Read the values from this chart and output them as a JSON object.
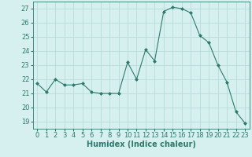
{
  "x": [
    0,
    1,
    2,
    3,
    4,
    5,
    6,
    7,
    8,
    9,
    10,
    11,
    12,
    13,
    14,
    15,
    16,
    17,
    18,
    19,
    20,
    21,
    22,
    23
  ],
  "y": [
    21.7,
    21.1,
    22.0,
    21.6,
    21.6,
    21.7,
    21.1,
    21.0,
    21.0,
    21.0,
    23.2,
    22.0,
    24.1,
    23.3,
    26.8,
    27.1,
    27.0,
    26.7,
    25.1,
    24.6,
    23.0,
    21.8,
    19.7,
    18.9
  ],
  "line_color": "#2d7a6e",
  "marker": "D",
  "marker_size": 2,
  "bg_color": "#d6f0ef",
  "grid_color": "#b8dbd9",
  "xlabel": "Humidex (Indice chaleur)",
  "xlabel_fontsize": 7,
  "tick_fontsize": 6,
  "ylim": [
    18.5,
    27.5
  ],
  "xlim": [
    -0.5,
    23.5
  ],
  "yticks": [
    19,
    20,
    21,
    22,
    23,
    24,
    25,
    26,
    27
  ],
  "xticks": [
    0,
    1,
    2,
    3,
    4,
    5,
    6,
    7,
    8,
    9,
    10,
    11,
    12,
    13,
    14,
    15,
    16,
    17,
    18,
    19,
    20,
    21,
    22,
    23
  ]
}
